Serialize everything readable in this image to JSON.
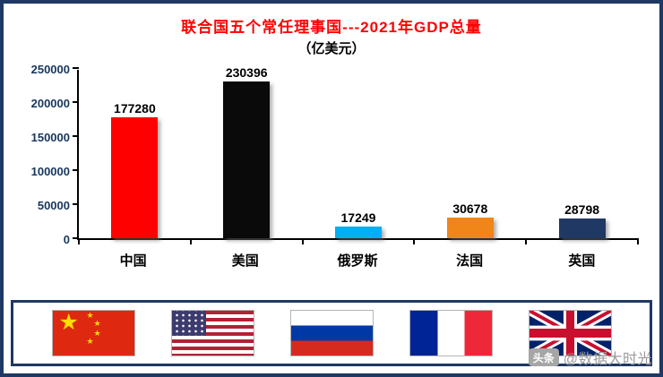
{
  "frame": {
    "border_color": "#1F3864",
    "background": "#FFFFFF"
  },
  "chart_data": {
    "type": "bar",
    "title": "联合国五个常任理事国---2021年GDP总量",
    "title_color": "#FF0000",
    "subtitle": "（亿美元）",
    "categories": [
      "中国",
      "美国",
      "俄罗斯",
      "法国",
      "英国"
    ],
    "values": [
      177280,
      230396,
      17249,
      30678,
      28798
    ],
    "bar_colors": [
      "#FF0000",
      "#0A0A0A",
      "#00B0F0",
      "#F08519",
      "#1F3864"
    ],
    "ylim": [
      0,
      250000
    ],
    "yticks": [
      0,
      50000,
      100000,
      150000,
      200000,
      250000
    ],
    "grid": false,
    "legend": "none",
    "value_labels_shown": true
  },
  "flags": [
    "china",
    "usa",
    "russia",
    "france",
    "uk"
  ],
  "watermark": {
    "brand": "头条",
    "handle": "@数据大时光"
  }
}
